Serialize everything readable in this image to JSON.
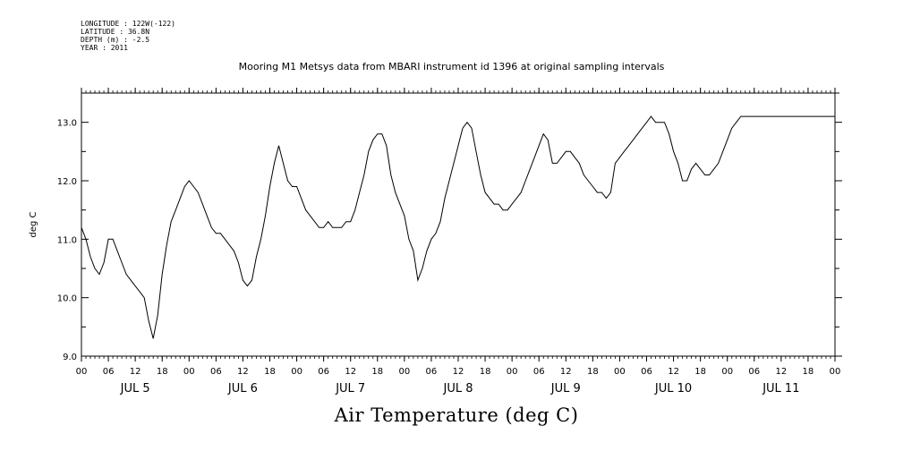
{
  "header": {
    "longitude": "LONGITUDE : 122W(-122)",
    "latitude": "LATITUDE : 36.8N",
    "depth": "DEPTH (m) : -2.5",
    "year": "YEAR : 2011"
  },
  "colors": {
    "line": "#000000",
    "background": "#ffffff"
  },
  "chart_data": {
    "type": "line",
    "title": "Mooring M1 Metsys data from MBARI instrument id 1396 at original sampling intervals",
    "xlabel": "Air Temperature (deg C)",
    "ylabel": "deg C",
    "ylim": [
      9.0,
      13.5
    ],
    "xlim": [
      0,
      168
    ],
    "x_units": "hours from 2011-07-05 00:00",
    "y_ticks": [
      "9.0",
      "10.0",
      "11.0",
      "12.0",
      "13.0"
    ],
    "x_hour_ticks": [
      "00",
      "06",
      "12",
      "18"
    ],
    "day_labels": [
      "JUL  5",
      "JUL  6",
      "JUL  7",
      "JUL  8",
      "JUL  9",
      "JUL 10",
      "JUL 11"
    ],
    "grid": false,
    "series": [
      {
        "x": [
          0,
          1,
          2,
          3,
          4,
          5,
          6,
          7,
          8,
          9,
          10,
          11,
          12,
          13,
          14,
          15,
          16,
          17,
          18,
          19,
          20,
          21,
          22,
          23,
          24,
          25,
          26,
          27,
          28,
          29,
          30,
          31,
          32,
          33,
          34,
          35,
          36,
          37,
          38,
          39,
          40,
          41,
          42,
          43,
          44,
          45,
          46,
          47,
          48,
          49,
          50,
          51,
          52,
          53,
          54,
          55,
          56,
          57,
          58,
          59,
          60,
          61,
          62,
          63,
          64,
          65,
          66,
          67,
          68,
          69,
          70,
          71,
          72,
          73,
          74,
          75,
          76,
          77,
          78,
          79,
          80,
          81,
          82,
          83,
          84,
          85,
          86,
          87,
          88,
          89,
          90,
          91,
          92,
          93,
          94,
          95,
          96,
          97,
          98,
          99,
          100,
          101,
          102,
          103,
          104,
          105,
          106,
          107,
          108,
          109,
          110,
          111,
          112,
          113,
          114,
          115,
          116,
          117,
          118,
          119,
          120,
          121,
          122,
          123,
          124,
          125,
          126,
          127,
          128,
          129,
          130,
          131,
          132,
          133,
          134,
          135,
          136,
          137,
          138,
          139,
          140,
          141,
          142,
          143,
          144,
          145,
          146,
          147,
          148,
          149,
          150,
          151,
          152,
          153,
          154,
          155,
          156,
          157,
          158,
          159,
          160,
          161,
          162,
          163,
          164,
          165,
          166,
          167,
          168
        ],
        "values": [
          11.2,
          11.0,
          10.7,
          10.5,
          10.4,
          10.6,
          11.0,
          11.0,
          10.8,
          10.6,
          10.4,
          10.3,
          10.2,
          10.1,
          10.0,
          9.6,
          9.3,
          9.7,
          10.4,
          10.9,
          11.3,
          11.5,
          11.7,
          11.9,
          12.0,
          11.9,
          11.8,
          11.6,
          11.4,
          11.2,
          11.1,
          11.1,
          11.0,
          10.9,
          10.8,
          10.6,
          10.3,
          10.2,
          10.3,
          10.7,
          11.0,
          11.4,
          11.9,
          12.3,
          12.6,
          12.3,
          12.0,
          11.9,
          11.9,
          11.7,
          11.5,
          11.4,
          11.3,
          11.2,
          11.2,
          11.3,
          11.2,
          11.2,
          11.2,
          11.3,
          11.3,
          11.5,
          11.8,
          12.1,
          12.5,
          12.7,
          12.8,
          12.8,
          12.6,
          12.1,
          11.8,
          11.6,
          11.4,
          11.0,
          10.8,
          10.3,
          10.5,
          10.8,
          11.0,
          11.1,
          11.3,
          11.7,
          12.0,
          12.3,
          12.6,
          12.9,
          13.0,
          12.9,
          12.5,
          12.1,
          11.8,
          11.7,
          11.6,
          11.6,
          11.5,
          11.5,
          11.6,
          11.7,
          11.8,
          12.0,
          12.2,
          12.4,
          12.6,
          12.8,
          12.7,
          12.3,
          12.3,
          12.4,
          12.5,
          12.5,
          12.4,
          12.3,
          12.1,
          12.0,
          11.9,
          11.8,
          11.8,
          11.7,
          11.8,
          12.3,
          12.4,
          12.5,
          12.6,
          12.7,
          12.8,
          12.9,
          13.0,
          13.1,
          13.0,
          13.0,
          13.0,
          12.8,
          12.5,
          12.3,
          12.0,
          12.0,
          12.2,
          12.3,
          12.2,
          12.1,
          12.1,
          12.2,
          12.3,
          12.5,
          12.7,
          12.9,
          13.0,
          13.1,
          13.1,
          13.1,
          13.1,
          13.1,
          13.1,
          13.1,
          13.1,
          13.1,
          13.1,
          13.1,
          13.1,
          13.1,
          13.1,
          13.1,
          13.1,
          13.1,
          13.1,
          13.1,
          13.1,
          13.1,
          13.1
        ]
      }
    ]
  }
}
